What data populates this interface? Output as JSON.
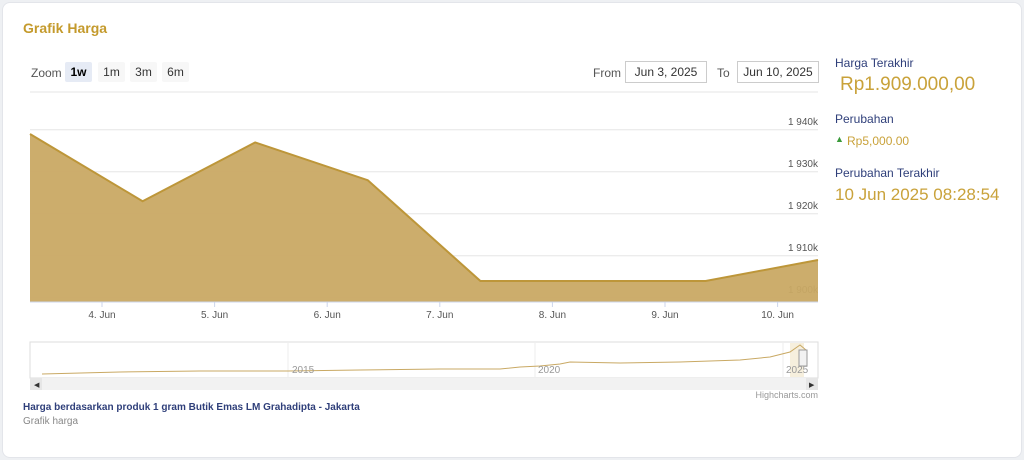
{
  "header": {
    "title": "Grafik Harga"
  },
  "controls": {
    "zoom_label": "Zoom",
    "zoom_buttons": [
      "1w",
      "1m",
      "3m",
      "6m"
    ],
    "from_label": "From",
    "from_value": "Jun 3, 2025",
    "to_label": "To",
    "to_value": "Jun 10, 2025"
  },
  "chart_data": {
    "type": "area",
    "categories": [
      null,
      "4. Jun",
      "5. Jun",
      "6. Jun",
      "7. Jun",
      "8. Jun",
      "9. Jun",
      "10. Jun"
    ],
    "series": [
      {
        "name": "Harga",
        "color": "#c9a964",
        "values": [
          1939000,
          1923000,
          1937000,
          1928000,
          1904000,
          1904000,
          1904000,
          1909000
        ]
      }
    ],
    "ylim": [
      1899000,
      1949000
    ],
    "yticks": [
      {
        "value": 1900000,
        "label": "1 900k"
      },
      {
        "value": 1910000,
        "label": "1 910k"
      },
      {
        "value": 1920000,
        "label": "1 920k"
      },
      {
        "value": 1930000,
        "label": "1 930k"
      },
      {
        "value": 1940000,
        "label": "1 940k"
      }
    ],
    "grid": true,
    "navigator_labels": [
      "2015",
      "2020",
      "2025"
    ],
    "credits": "Highcharts.com"
  },
  "sidebar": {
    "last_price_label": "Harga Terakhir",
    "last_price": "Rp1.909.000,00",
    "change_label": "Perubahan",
    "change": "Rp5,000.00",
    "last_change_label": "Perubahan Terakhir",
    "last_change": "10 Jun 2025 08:28:54"
  },
  "footer": {
    "caption": "Harga berdasarkan produk 1 gram Butik Emas LM Grahadipta - Jakarta",
    "subcaption": "Grafik harga"
  }
}
